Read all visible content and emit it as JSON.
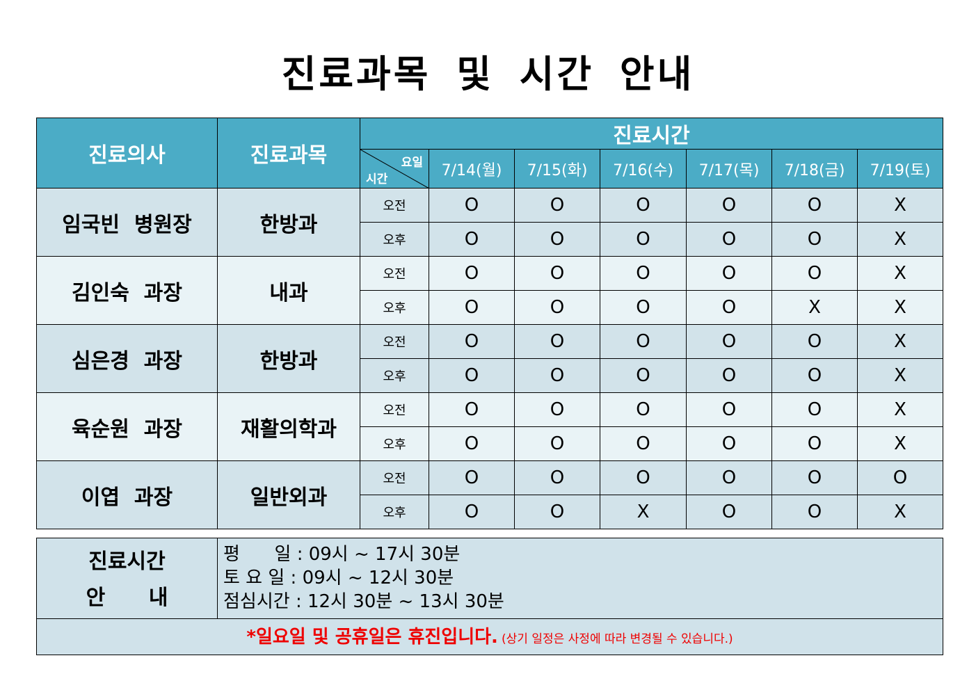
{
  "title": "진료과목 및 시간 안내",
  "header": {
    "doctor": "진료의사",
    "dept": "진료과목",
    "hours": "진료시간",
    "day_label": "요일",
    "time_label": "시간",
    "dates": [
      "7/14(월)",
      "7/15(화)",
      "7/16(수)",
      "7/17(목)",
      "7/18(금)",
      "7/19(토)"
    ]
  },
  "slots": [
    "오전",
    "오후"
  ],
  "doctors": [
    {
      "name": "임국빈  병원장",
      "dept": "한방과",
      "am": [
        "O",
        "O",
        "O",
        "O",
        "O",
        "X"
      ],
      "pm": [
        "O",
        "O",
        "O",
        "O",
        "O",
        "X"
      ]
    },
    {
      "name": "김인숙  과장",
      "dept": "내과",
      "am": [
        "O",
        "O",
        "O",
        "O",
        "O",
        "X"
      ],
      "pm": [
        "O",
        "O",
        "O",
        "O",
        "X",
        "X"
      ]
    },
    {
      "name": "심은경  과장",
      "dept": "한방과",
      "am": [
        "O",
        "O",
        "O",
        "O",
        "O",
        "X"
      ],
      "pm": [
        "O",
        "O",
        "O",
        "O",
        "O",
        "X"
      ]
    },
    {
      "name": "육순원  과장",
      "dept": "재활의학과",
      "am": [
        "O",
        "O",
        "O",
        "O",
        "O",
        "X"
      ],
      "pm": [
        "O",
        "O",
        "O",
        "O",
        "O",
        "X"
      ]
    },
    {
      "name": "이엽  과장",
      "dept": "일반외과",
      "am": [
        "O",
        "O",
        "O",
        "O",
        "O",
        "O"
      ],
      "pm": [
        "O",
        "O",
        "X",
        "O",
        "O",
        "X"
      ]
    }
  ],
  "info": {
    "label1": "진료시간",
    "label2": "안      내",
    "lines": [
      "평      일 : 09시 ~ 17시 30분",
      "토 요 일 : 09시 ~ 12시 30분",
      "점심시간 : 12시 30분 ~ 13시 30분"
    ],
    "note": "*일요일 및 공휴일은 휴진입니다.",
    "note_small": "(상기 일정은 사정에 따라 변경될 수 있습니다.)"
  },
  "colors": {
    "header": "#4bacc6",
    "row_dark": "#d2e3ea",
    "row_light": "#e9f3f6",
    "note": "#ee0000"
  }
}
